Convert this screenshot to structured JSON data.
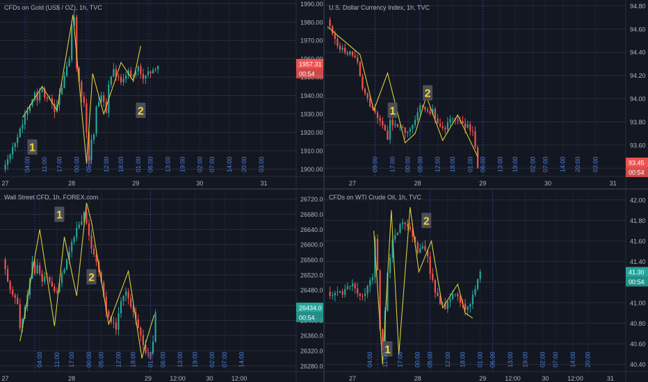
{
  "colors": {
    "background": "#131722",
    "grid": "#2a2e39",
    "axis_text": "#b2b5be",
    "session_line": "#2962ff",
    "session_text": "#4d7fd6",
    "candle_up": "#26a69a",
    "candle_down": "#ef5350",
    "zigzag": "#d9cf38",
    "marker_bg": "#4a4e58",
    "marker_text": "#f0d33a",
    "price_red": "#f05350",
    "price_green": "#26a69a"
  },
  "chart_data": [
    {
      "id": "gold",
      "type": "candlestick",
      "title": "CFDs on Gold (US$ / OZ), 1h, TVC",
      "ylim": [
        1896,
        1992
      ],
      "y_ticks": [
        "1990.00",
        "1980.00",
        "1970.00",
        "1960.00",
        "1950.00",
        "1940.00",
        "1930.00",
        "1920.00",
        "1910.00",
        "1900.00"
      ],
      "day_labels": [
        "27",
        "28",
        "29",
        "30",
        "31"
      ],
      "day_pos": [
        1,
        28,
        54,
        80,
        106
      ],
      "hour_labels": [
        "04:00",
        "11:00",
        "17:00",
        "00:00",
        "05:00",
        "12:00",
        "18:00",
        "01:00",
        "06:00",
        "13:00",
        "19:00",
        "02:00",
        "07:00",
        "14:00",
        "20:00",
        "03:00"
      ],
      "hour_pos": [
        10,
        17,
        23,
        30,
        35,
        42,
        48,
        55,
        60,
        67,
        73,
        80,
        85,
        92,
        98,
        105
      ],
      "anchors": [
        [
          0,
          1900
        ],
        [
          4,
          1912
        ],
        [
          6,
          1918
        ],
        [
          8,
          1925
        ],
        [
          9,
          1930
        ],
        [
          11,
          1934
        ],
        [
          13,
          1941
        ],
        [
          14,
          1938
        ],
        [
          16,
          1944
        ],
        [
          17,
          1940
        ],
        [
          19,
          1938
        ],
        [
          21,
          1932
        ],
        [
          22,
          1936
        ],
        [
          25,
          1950
        ],
        [
          27,
          1960
        ],
        [
          28,
          1978
        ],
        [
          29,
          1983
        ],
        [
          30,
          1955
        ],
        [
          32,
          1940
        ],
        [
          33,
          1935
        ],
        [
          35,
          1906
        ],
        [
          36,
          1915
        ],
        [
          37,
          1920
        ],
        [
          38,
          1935
        ],
        [
          40,
          1940
        ],
        [
          41,
          1936
        ],
        [
          42,
          1930
        ],
        [
          43,
          1945
        ],
        [
          45,
          1955
        ],
        [
          46,
          1950
        ],
        [
          48,
          1948
        ],
        [
          51,
          1953
        ],
        [
          53,
          1950
        ],
        [
          55,
          1956
        ],
        [
          57,
          1948
        ],
        [
          59,
          1952
        ],
        [
          61,
          1953
        ],
        [
          63,
          1957
        ]
      ],
      "zigzag_x": [
        8,
        16,
        22,
        28.5,
        34,
        36.5,
        41,
        48,
        53,
        56
      ],
      "zigzag_y": [
        1928,
        1945,
        1932,
        1984,
        1903,
        1952,
        1930,
        1958,
        1948,
        1967
      ],
      "markers": [
        {
          "label": "1",
          "x": 12,
          "y": 1912
        },
        {
          "label": "2",
          "x": 56,
          "y": 1932
        }
      ],
      "session_x": [
        9,
        34,
        59
      ],
      "price": {
        "value": "1957.31",
        "countdown": "00:54",
        "y": 1957.31,
        "color": "#f05350"
      }
    },
    {
      "id": "dxy",
      "type": "candlestick",
      "title": "U.S. Dollar Currency Index, 1h, TVC",
      "ylim": [
        93.33,
        94.85
      ],
      "y_ticks": [
        "94.80",
        "94.60",
        "94.40",
        "94.20",
        "94.00",
        "93.80",
        "93.60",
        "93.40",
        "93.20"
      ],
      "day_labels": [
        "27",
        "28",
        "29",
        "30",
        "31"
      ],
      "day_pos": [
        10,
        36,
        62,
        88,
        114
      ],
      "hour_labels": [
        "09:00",
        "17:00",
        "00:00",
        "05:00",
        "12:00",
        "18:00",
        "01:00",
        "06:00",
        "13:00",
        "19:00",
        "02:00",
        "07:00",
        "14:00",
        "20:00",
        "03:00"
      ],
      "hour_pos": [
        19,
        26,
        32,
        37,
        44,
        50,
        57,
        62,
        69,
        75,
        82,
        87,
        94,
        100,
        107
      ],
      "anchors": [
        [
          0,
          94.68
        ],
        [
          2,
          94.56
        ],
        [
          4,
          94.46
        ],
        [
          6,
          94.42
        ],
        [
          8,
          94.4
        ],
        [
          10,
          94.38
        ],
        [
          12,
          94.3
        ],
        [
          13,
          94.2
        ],
        [
          14,
          94.1
        ],
        [
          16,
          94.0
        ],
        [
          17,
          93.95
        ],
        [
          19,
          93.88
        ],
        [
          21,
          93.82
        ],
        [
          23,
          93.72
        ],
        [
          24,
          93.65
        ],
        [
          25,
          93.8
        ],
        [
          26,
          93.78
        ],
        [
          28,
          93.76
        ],
        [
          29,
          93.77
        ],
        [
          31,
          93.72
        ],
        [
          32,
          93.7
        ],
        [
          33,
          93.74
        ],
        [
          35,
          93.8
        ],
        [
          37,
          93.95
        ],
        [
          39,
          93.9
        ],
        [
          41,
          93.88
        ],
        [
          42,
          93.9
        ],
        [
          43,
          93.82
        ],
        [
          45,
          93.76
        ],
        [
          47,
          93.74
        ],
        [
          48,
          93.8
        ],
        [
          50,
          93.82
        ],
        [
          52,
          93.81
        ],
        [
          54,
          93.78
        ],
        [
          56,
          93.76
        ],
        [
          58,
          93.72
        ],
        [
          60,
          93.42
        ]
      ],
      "zigzag_x": [
        0,
        13,
        18.5,
        24,
        31,
        35,
        39.5,
        46,
        52,
        60
      ],
      "zigzag_y": [
        94.62,
        94.38,
        93.9,
        94.22,
        93.62,
        93.7,
        94.02,
        93.64,
        93.86,
        93.5
      ],
      "markers": [
        {
          "label": "1",
          "x": 26,
          "y": 93.9
        },
        {
          "label": "2",
          "x": 40,
          "y": 94.05
        }
      ],
      "session_x": [
        19,
        37,
        62
      ],
      "price": {
        "value": "93.45",
        "countdown": "00:54",
        "y": 93.45,
        "color": "#f05350"
      }
    },
    {
      "id": "dow",
      "type": "candlestick",
      "title": "Wall Street CFD, 1h, FOREX.com",
      "ylim": [
        26265,
        26745
      ],
      "y_ticks": [
        "26720.00",
        "26680.00",
        "26640.00",
        "26600.00",
        "26560.00",
        "26520.00",
        "26480.00",
        "26440.00",
        "26400.00",
        "26360.00",
        "26320.00",
        "26280.00"
      ],
      "day_labels": [
        "27",
        "28",
        "29",
        "12:00",
        "30",
        "12:00"
      ],
      "day_pos": [
        1,
        28,
        59,
        71,
        84,
        96
      ],
      "hour_labels": [
        "04:00",
        "11:00",
        "17:00",
        "00:00",
        "05:00",
        "12:00",
        "18:00",
        "01:00",
        "06:00",
        "13:00",
        "19:00",
        "02:00",
        "07:00",
        "14:00"
      ],
      "hour_pos": [
        15,
        22,
        28,
        35,
        40,
        47,
        53,
        60,
        65,
        72,
        78,
        85,
        90,
        97
      ],
      "anchors": [
        [
          0,
          26560
        ],
        [
          2,
          26500
        ],
        [
          4,
          26470
        ],
        [
          6,
          26440
        ],
        [
          7,
          26380
        ],
        [
          8,
          26400
        ],
        [
          10,
          26470
        ],
        [
          12,
          26560
        ],
        [
          13,
          26520
        ],
        [
          14,
          26540
        ],
        [
          16,
          26500
        ],
        [
          18,
          26520
        ],
        [
          20,
          26490
        ],
        [
          22,
          26470
        ],
        [
          24,
          26520
        ],
        [
          26,
          26560
        ],
        [
          28,
          26610
        ],
        [
          30,
          26640
        ],
        [
          32,
          26660
        ],
        [
          33,
          26690
        ],
        [
          34,
          26650
        ],
        [
          36,
          26590
        ],
        [
          38,
          26560
        ],
        [
          40,
          26500
        ],
        [
          42,
          26420
        ],
        [
          44,
          26400
        ],
        [
          46,
          26380
        ],
        [
          48,
          26450
        ],
        [
          50,
          26480
        ],
        [
          52,
          26440
        ],
        [
          54,
          26400
        ],
        [
          56,
          26360
        ],
        [
          58,
          26320
        ],
        [
          60,
          26310
        ],
        [
          61,
          26350
        ],
        [
          62,
          26420
        ]
      ],
      "zigzag_x": [
        7,
        15,
        21,
        25,
        30,
        34,
        36,
        43,
        51,
        56.5,
        58,
        61.5
      ],
      "zigzag_y": [
        26345,
        26640,
        26385,
        26620,
        26465,
        26710,
        26660,
        26390,
        26530,
        26300,
        26340,
        26415
      ],
      "markers": [
        {
          "label": "1",
          "x": 23,
          "y": 26680
        },
        {
          "label": "2",
          "x": 36,
          "y": 26515
        }
      ],
      "session_x": [
        13,
        35,
        60
      ],
      "price": {
        "value": "26434.0",
        "countdown": "00:54",
        "y": 26434,
        "color": "#26a69a"
      }
    },
    {
      "id": "wti",
      "type": "candlestick",
      "title": "CFDs on WTI Crude Oil, 1h, TVC",
      "ylim": [
        40.33,
        42.1
      ],
      "y_ticks": [
        "42.00",
        "41.80",
        "41.60",
        "41.40",
        "41.20",
        "41.00",
        "40.80",
        "40.60",
        "40.40"
      ],
      "day_labels": [
        "27",
        "28",
        "29",
        "12:00",
        "30",
        "12:00",
        "31"
      ],
      "day_pos": [
        10,
        36,
        62,
        74,
        87,
        99,
        113
      ],
      "hour_labels": [
        "04:00",
        "11:00",
        "17:00",
        "00:00",
        "05:00",
        "12:00",
        "18:00",
        "01:00",
        "06:00",
        "13:00",
        "19:00",
        "02:00",
        "07:00",
        "14:00",
        "20:00"
      ],
      "hour_pos": [
        17,
        23,
        29,
        36,
        41,
        48,
        54,
        61,
        66,
        73,
        79,
        86,
        91,
        98,
        104
      ],
      "anchors": [
        [
          0,
          41.1
        ],
        [
          2,
          41.05
        ],
        [
          4,
          41.12
        ],
        [
          6,
          41.08
        ],
        [
          8,
          41.15
        ],
        [
          10,
          41.2
        ],
        [
          12,
          41.1
        ],
        [
          14,
          41.05
        ],
        [
          16,
          41.15
        ],
        [
          18,
          41.25
        ],
        [
          19,
          41.6
        ],
        [
          20,
          41.3
        ],
        [
          21,
          40.75
        ],
        [
          22,
          40.6
        ],
        [
          23,
          40.9
        ],
        [
          24,
          41.3
        ],
        [
          26,
          41.6
        ],
        [
          28,
          41.7
        ],
        [
          30,
          41.8
        ],
        [
          32,
          41.75
        ],
        [
          34,
          41.65
        ],
        [
          36,
          41.5
        ],
        [
          38,
          41.55
        ],
        [
          40,
          41.45
        ],
        [
          41,
          41.3
        ],
        [
          43,
          41.1
        ],
        [
          45,
          41.0
        ],
        [
          47,
          40.95
        ],
        [
          49,
          41.05
        ],
        [
          51,
          41.1
        ],
        [
          53,
          41.0
        ],
        [
          55,
          40.95
        ],
        [
          57,
          41.0
        ],
        [
          59,
          41.15
        ],
        [
          61,
          41.3
        ]
      ],
      "zigzag_x": [
        18.5,
        22,
        25.5,
        28.5,
        33,
        36.5,
        41.5,
        46,
        52,
        55,
        58
      ],
      "zigzag_y": [
        41.7,
        40.4,
        41.9,
        40.5,
        41.93,
        41.3,
        41.6,
        40.95,
        41.18,
        40.9,
        40.85
      ],
      "markers": [
        {
          "label": "1",
          "x": 24,
          "y": 40.55
        },
        {
          "label": "2",
          "x": 39.5,
          "y": 41.8
        }
      ],
      "session_x": [
        20,
        41,
        66
      ],
      "price": {
        "value": "41.30",
        "countdown": "00:54",
        "y": 41.3,
        "color": "#26a69a"
      }
    }
  ]
}
